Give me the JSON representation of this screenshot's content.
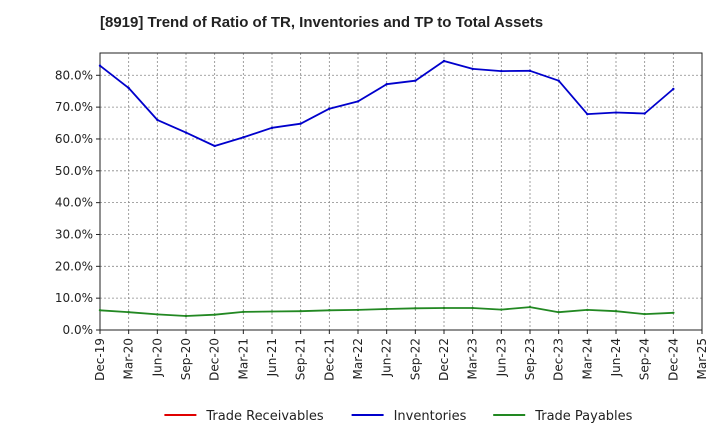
{
  "chart_data": {
    "type": "line",
    "title": "[8919]  Trend of Ratio of TR, Inventories and TP to Total Assets",
    "xlabel": "",
    "ylabel": "",
    "x": [
      "Dec-19",
      "Mar-20",
      "Jun-20",
      "Sep-20",
      "Dec-20",
      "Mar-21",
      "Jun-21",
      "Sep-21",
      "Dec-21",
      "Mar-22",
      "Jun-22",
      "Sep-22",
      "Dec-22",
      "Mar-23",
      "Jun-23",
      "Sep-23",
      "Dec-23",
      "Mar-24",
      "Jun-24",
      "Sep-24",
      "Dec-24",
      "Mar-25"
    ],
    "ylim": [
      0,
      87
    ],
    "yticks": [
      0,
      10,
      20,
      30,
      40,
      50,
      60,
      70,
      80
    ],
    "ytick_labels": [
      "0.0%",
      "10.0%",
      "20.0%",
      "30.0%",
      "40.0%",
      "50.0%",
      "60.0%",
      "70.0%",
      "80.0%"
    ],
    "grid": true,
    "legend_position": "bottom",
    "series": [
      {
        "name": "Trade Receivables",
        "color": "#e00000",
        "values": [
          null,
          null,
          null,
          null,
          null,
          null,
          null,
          null,
          null,
          null,
          null,
          null,
          null,
          null,
          null,
          null,
          null,
          null,
          null,
          null,
          null,
          null
        ]
      },
      {
        "name": "Inventories",
        "color": "#0000cc",
        "values": [
          83.0,
          76.0,
          66.0,
          62.0,
          57.8,
          60.5,
          63.5,
          64.8,
          69.5,
          71.8,
          77.2,
          78.3,
          84.5,
          82.0,
          81.3,
          81.4,
          78.3,
          67.8,
          68.3,
          68.0,
          75.7,
          null
        ]
      },
      {
        "name": "Trade Payables",
        "color": "#228822",
        "values": [
          6.2,
          5.6,
          4.9,
          4.4,
          4.8,
          5.7,
          5.8,
          5.9,
          6.2,
          6.3,
          6.6,
          6.8,
          6.9,
          6.9,
          6.4,
          7.2,
          5.6,
          6.3,
          5.9,
          5.0,
          5.4,
          null
        ]
      }
    ]
  }
}
